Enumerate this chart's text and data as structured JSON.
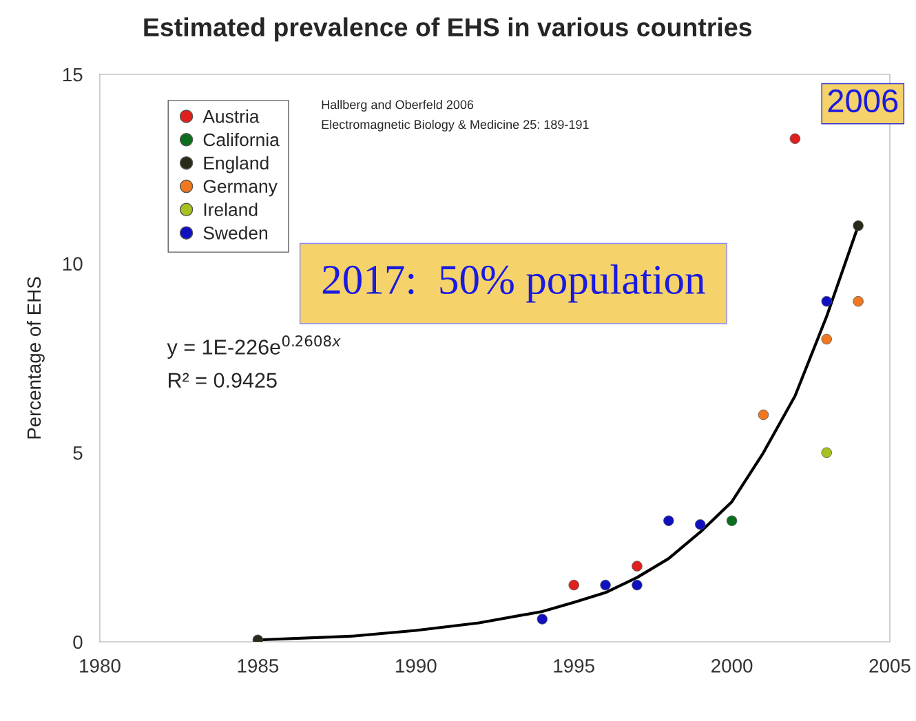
{
  "chart_data": {
    "type": "scatter",
    "title": "Estimated prevalence of EHS in various countries",
    "ylabel": "Percentage of EHS",
    "xlim": [
      1980,
      2005
    ],
    "xticks": [
      1980,
      1985,
      1990,
      1995,
      2000,
      2005
    ],
    "ylim": [
      0,
      15
    ],
    "yticks": [
      0,
      5,
      10,
      15
    ],
    "grid": false,
    "legend": "top left",
    "marker": "circle",
    "series": [
      {
        "name": "Austria",
        "color": "#e0201c",
        "x": [
          1995,
          1997,
          2002
        ],
        "values": [
          1.5,
          2.0,
          13.3
        ]
      },
      {
        "name": "California",
        "color": "#0a6e1e",
        "x": [
          2000
        ],
        "values": [
          3.2
        ]
      },
      {
        "name": "England",
        "color": "#2a2a1a",
        "x": [
          1985,
          2004
        ],
        "values": [
          0.05,
          11.0
        ]
      },
      {
        "name": "Germany",
        "color": "#f07820",
        "x": [
          2001,
          2003,
          2004
        ],
        "values": [
          6.0,
          8.0,
          9.0
        ]
      },
      {
        "name": "Ireland",
        "color": "#a8c020",
        "x": [
          2003
        ],
        "values": [
          5.0
        ]
      },
      {
        "name": "Sweden",
        "color": "#1010c0",
        "x": [
          1994,
          1996,
          1997,
          1998,
          1999,
          2003
        ],
        "values": [
          0.6,
          1.5,
          1.5,
          3.2,
          3.1,
          9.0
        ]
      },
      {
        "type": "line",
        "color": "#000000",
        "marker": "none",
        "x": [
          1985,
          1988,
          1990,
          1992,
          1994,
          1995,
          1996,
          1997,
          1998,
          1999,
          2000,
          2001,
          2002,
          2003,
          2004
        ],
        "values": [
          0.05,
          0.15,
          0.3,
          0.5,
          0.8,
          1.04,
          1.3,
          1.7,
          2.2,
          2.9,
          3.7,
          5.0,
          6.5,
          8.6,
          11.0
        ]
      }
    ],
    "annotations": [
      "Hallberg and Oberfeld 2006",
      "Electromagnetic Biology & Medicine 25: 189-191",
      "y = 1E-226e$^{0.2608x}$",
      "R² = 0.9425",
      "2017:  50% population",
      "2006"
    ]
  }
}
